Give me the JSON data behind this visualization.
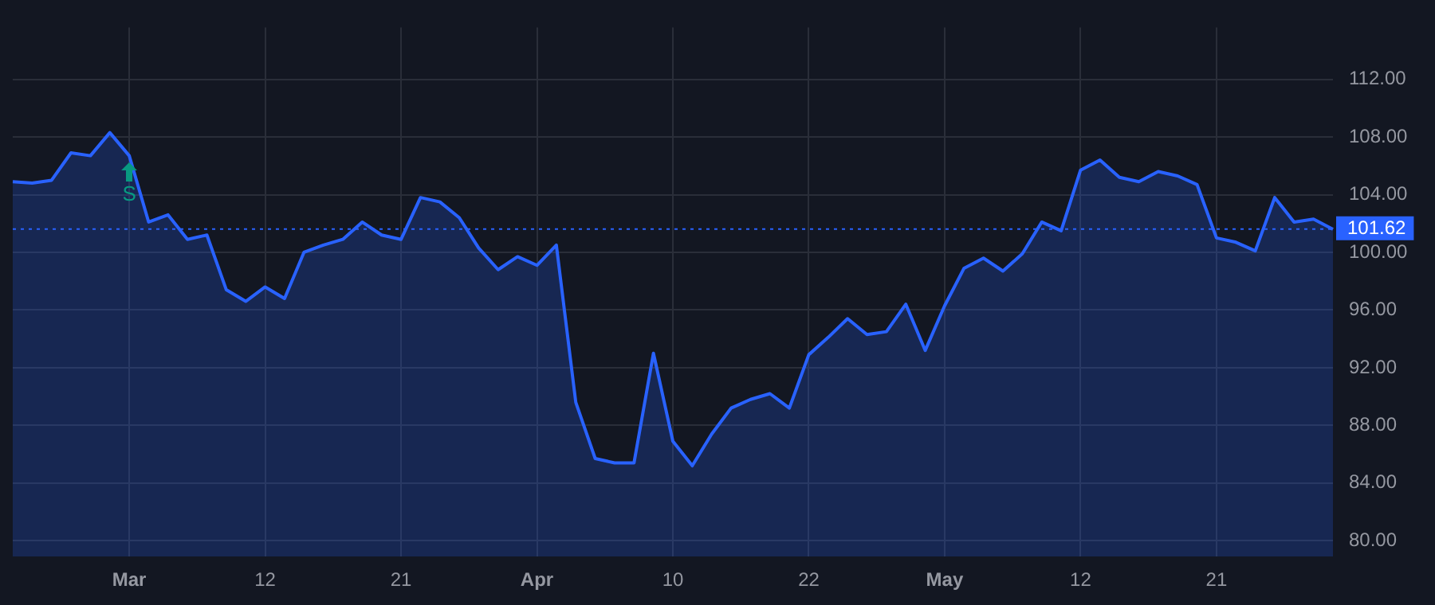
{
  "chart_data": {
    "type": "area",
    "categories": [
      null,
      null,
      null,
      null,
      null,
      null,
      "Mar",
      null,
      null,
      null,
      null,
      null,
      null,
      "12",
      null,
      null,
      null,
      null,
      null,
      null,
      "21",
      null,
      null,
      null,
      null,
      null,
      null,
      "Apr",
      null,
      null,
      null,
      null,
      null,
      null,
      "10",
      null,
      null,
      null,
      null,
      null,
      null,
      "22",
      null,
      null,
      null,
      null,
      null,
      null,
      "May",
      null,
      null,
      null,
      null,
      null,
      null,
      "12",
      null,
      null,
      null,
      null,
      null,
      null,
      "21",
      null,
      null,
      null,
      null,
      null,
      null
    ],
    "series": [
      {
        "color": "#2962ff",
        "values": [
          104.9,
          104.8,
          105.0,
          106.9,
          106.7,
          108.3,
          106.7,
          102.1,
          102.6,
          100.9,
          101.2,
          97.4,
          96.6,
          97.6,
          96.8,
          100.0,
          100.5,
          100.9,
          102.1,
          101.2,
          100.9,
          103.8,
          103.5,
          102.4,
          100.3,
          98.8,
          99.7,
          99.1,
          100.5,
          89.6,
          85.7,
          85.4,
          85.4,
          93.0,
          86.9,
          85.2,
          87.4,
          89.2,
          89.8,
          90.2,
          89.2,
          92.9,
          94.1,
          95.4,
          94.3,
          94.5,
          96.4,
          93.2,
          96.3,
          98.9,
          99.6,
          98.7,
          99.9,
          102.1,
          101.5,
          105.7,
          106.4,
          105.2,
          104.9,
          105.6,
          105.3,
          104.7,
          101.0,
          100.7,
          100.1,
          103.8,
          102.1,
          102.3,
          101.6
        ]
      }
    ],
    "ylim": [
      78.9,
      115.6
    ],
    "yticks": [
      {
        "value": 80,
        "label": "80.00"
      },
      {
        "value": 84,
        "label": "84.00"
      },
      {
        "value": 88,
        "label": "88.00"
      },
      {
        "value": 92,
        "label": "92.00"
      },
      {
        "value": 96,
        "label": "96.00"
      },
      {
        "value": 100,
        "label": "100.00"
      },
      {
        "value": 104,
        "label": "104.00"
      },
      {
        "value": 108,
        "label": "108.00"
      },
      {
        "value": 112,
        "label": "112.00"
      }
    ],
    "grid": true,
    "ref_lines": [
      {
        "axis": "y",
        "value": 101.62,
        "label": "101.62",
        "color": "#2962ff",
        "line_style": "dotted"
      }
    ],
    "annotations": [
      {
        "text": "S",
        "x": "Mar",
        "y": 106.7
      }
    ]
  }
}
